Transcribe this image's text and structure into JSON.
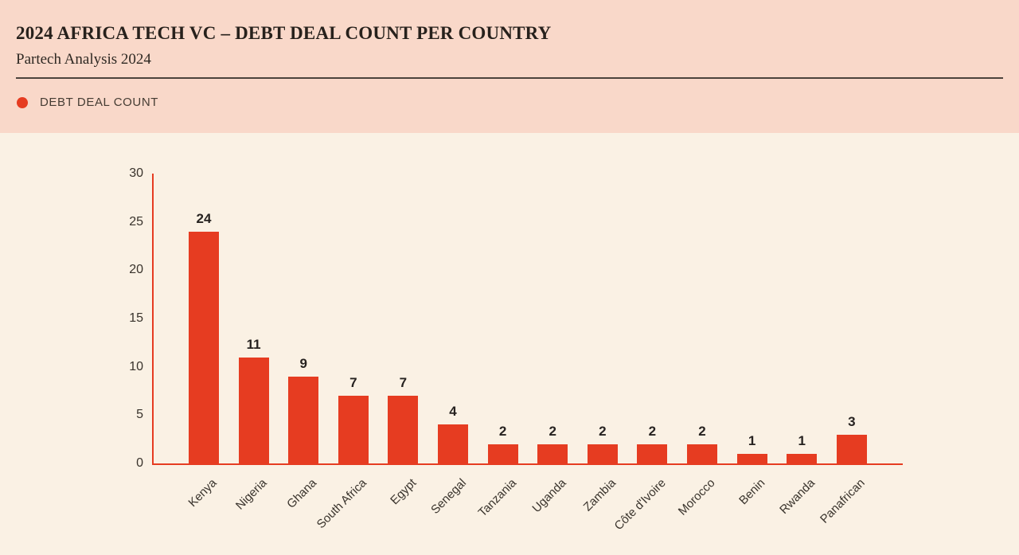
{
  "header": {
    "title": "2024 AFRICA TECH VC – DEBT DEAL COUNT PER COUNTRY",
    "subtitle": "Partech Analysis 2024"
  },
  "legend": {
    "label": "DEBT DEAL COUNT"
  },
  "colors": {
    "header_bg": "#f9d8c9",
    "chart_bg": "#faf1e4",
    "bar": "#e63c21",
    "axis": "#e63c21",
    "title_text": "#27211c",
    "rule": "#4d443c",
    "tick_text": "#39332c",
    "value_text": "#262220"
  },
  "chart_data": {
    "type": "bar",
    "title": "2024 AFRICA TECH VC – DEBT DEAL COUNT PER COUNTRY",
    "subtitle": "Partech Analysis 2024",
    "series_name": "DEBT DEAL COUNT",
    "categories": [
      "Kenya",
      "Nigeria",
      "Ghana",
      "South Africa",
      "Egypt",
      "Senegal",
      "Tanzania",
      "Uganda",
      "Zambia",
      "Côte d'Ivoire",
      "Morocco",
      "Benin",
      "Rwanda",
      "Panafrican"
    ],
    "values": [
      24,
      11,
      9,
      7,
      7,
      4,
      2,
      2,
      2,
      2,
      2,
      1,
      1,
      3
    ],
    "xlabel": "",
    "ylabel": "",
    "ylim": [
      0,
      30
    ],
    "yticks": [
      0,
      5,
      10,
      15,
      20,
      25,
      30
    ],
    "grid": false,
    "bar_value_labels": true,
    "legend_position": "top-left"
  }
}
